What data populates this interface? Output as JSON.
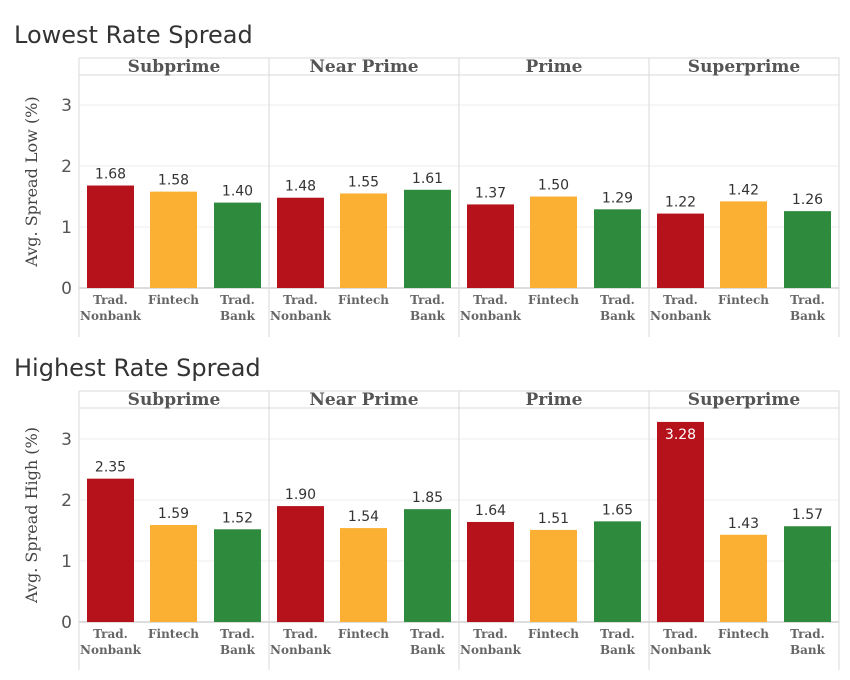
{
  "colors": {
    "Trad. Nonbank": "#b5121b",
    "Fintech": "#fbb034",
    "Trad. Bank": "#2e8b3e"
  },
  "chart_data": [
    {
      "type": "bar",
      "title": "Lowest Rate Spread",
      "ylabel": "Avg. Spread Low (%)",
      "ylim": [
        0,
        3.5
      ],
      "yticks": [
        0,
        1,
        2,
        3
      ],
      "grid": true,
      "groups": [
        "Subprime",
        "Near Prime",
        "Prime",
        "Superprime"
      ],
      "categories": [
        "Trad. Nonbank",
        "Fintech",
        "Trad. Bank"
      ],
      "category_labels": [
        [
          "Trad.",
          "Nonbank"
        ],
        [
          "Fintech"
        ],
        [
          "Trad.",
          "Bank"
        ]
      ],
      "values": [
        [
          1.68,
          1.58,
          1.4
        ],
        [
          1.48,
          1.55,
          1.61
        ],
        [
          1.37,
          1.5,
          1.29
        ],
        [
          1.22,
          1.42,
          1.26
        ]
      ],
      "value_labels": [
        [
          "1.68",
          "1.58",
          "1.40"
        ],
        [
          "1.48",
          "1.55",
          "1.61"
        ],
        [
          "1.37",
          "1.50",
          "1.29"
        ],
        [
          "1.22",
          "1.42",
          "1.26"
        ]
      ]
    },
    {
      "type": "bar",
      "title": "Highest Rate Spread",
      "ylabel": "Avg. Spread High (%)",
      "ylim": [
        0,
        3.5
      ],
      "yticks": [
        0,
        1,
        2,
        3
      ],
      "grid": true,
      "groups": [
        "Subprime",
        "Near Prime",
        "Prime",
        "Superprime"
      ],
      "categories": [
        "Trad. Nonbank",
        "Fintech",
        "Trad. Bank"
      ],
      "category_labels": [
        [
          "Trad.",
          "Nonbank"
        ],
        [
          "Fintech"
        ],
        [
          "Trad.",
          "Bank"
        ]
      ],
      "values": [
        [
          2.35,
          1.59,
          1.52
        ],
        [
          1.9,
          1.54,
          1.85
        ],
        [
          1.64,
          1.51,
          1.65
        ],
        [
          3.28,
          1.43,
          1.57
        ]
      ],
      "value_labels": [
        [
          "2.35",
          "1.59",
          "1.52"
        ],
        [
          "1.90",
          "1.54",
          "1.85"
        ],
        [
          "1.64",
          "1.51",
          "1.65"
        ],
        [
          "3.28",
          "1.43",
          "1.57"
        ]
      ]
    }
  ]
}
